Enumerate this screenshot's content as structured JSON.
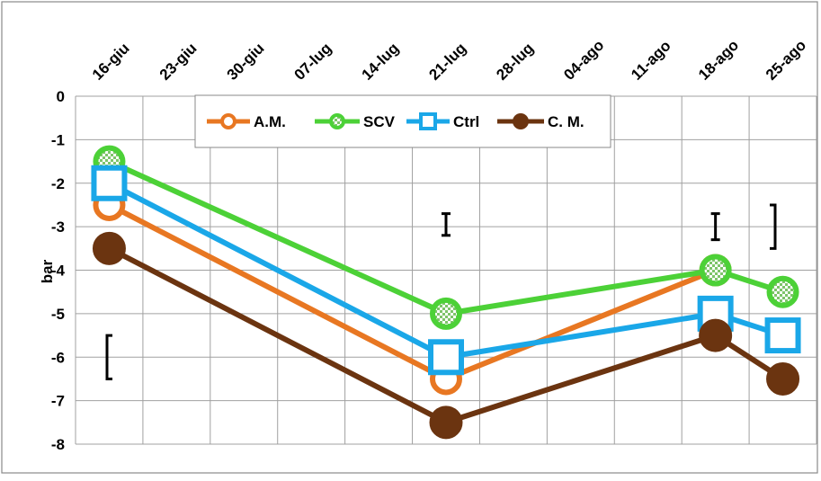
{
  "chart_data": {
    "type": "line",
    "x": [
      "16-giu",
      "23-giu",
      "30-giu",
      "07-lug",
      "14-lug",
      "21-lug",
      "28-lug",
      "04-ago",
      "11-ago",
      "18-ago",
      "25-ago"
    ],
    "ylabel": "bar",
    "ylim": [
      -8,
      0
    ],
    "yticks": [
      0,
      -1,
      -2,
      -3,
      -4,
      -5,
      -6,
      -7,
      -8
    ],
    "grid": true,
    "legend_position": "top-center",
    "series": [
      {
        "name": "A.M.",
        "color": "#E87722",
        "marker": "circle-open",
        "points": [
          [
            "16-giu",
            -2.5
          ],
          [
            "21-lug",
            -6.5
          ],
          [
            "18-ago",
            -4.0
          ]
        ]
      },
      {
        "name": "SCV",
        "color": "#4CD137",
        "marker": "circle-checkered",
        "points": [
          [
            "16-giu",
            -1.5
          ],
          [
            "21-lug",
            -5.0
          ],
          [
            "18-ago",
            -4.0
          ],
          [
            "25-ago",
            -4.5
          ]
        ]
      },
      {
        "name": "Ctrl",
        "color": "#1AA7E8",
        "marker": "square-open",
        "points": [
          [
            "16-giu",
            -2.0
          ],
          [
            "21-lug",
            -6.0
          ],
          [
            "18-ago",
            -5.0
          ],
          [
            "25-ago",
            -5.5
          ]
        ]
      },
      {
        "name": "C. M.",
        "color": "#6B3410",
        "marker": "circle-filled",
        "points": [
          [
            "16-giu",
            -3.5
          ],
          [
            "21-lug",
            -7.5
          ],
          [
            "18-ago",
            -5.5
          ],
          [
            "25-ago",
            -6.5
          ]
        ]
      }
    ],
    "error_bars": [
      {
        "x": "16-giu",
        "low": -6.5,
        "high": -5.5,
        "style": "bracket-left"
      },
      {
        "x": "21-lug",
        "low": -3.2,
        "high": -2.7,
        "style": "i-bar"
      },
      {
        "x": "18-ago",
        "low": -3.3,
        "high": -2.7,
        "style": "i-bar"
      },
      {
        "x": "25-ago",
        "low": -3.5,
        "high": -2.5,
        "style": "bracket-right"
      }
    ]
  }
}
